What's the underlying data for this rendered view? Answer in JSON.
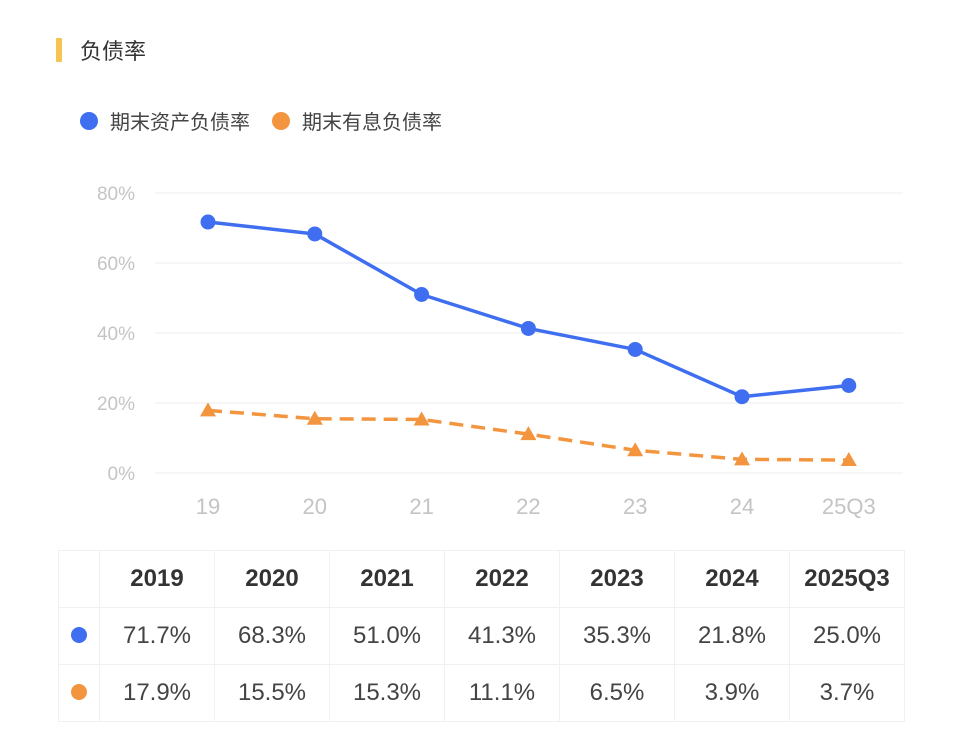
{
  "title": "负债率",
  "colors": {
    "accent_bar": "#f5c451",
    "asset_liability": "#3f6ff0",
    "interest_bearing": "#f3953f"
  },
  "chart_data": {
    "type": "line",
    "categories": [
      "19",
      "20",
      "21",
      "22",
      "23",
      "24",
      "25Q3"
    ],
    "series": [
      {
        "name": "期末资产负债率",
        "values": [
          71.7,
          68.3,
          51.0,
          41.3,
          35.3,
          21.8,
          25.0
        ],
        "marker": "circle",
        "line": "solid",
        "color": "#3f6ff0"
      },
      {
        "name": "期末有息负债率",
        "values": [
          17.9,
          15.5,
          15.3,
          11.1,
          6.5,
          3.9,
          3.7
        ],
        "marker": "triangle",
        "line": "dashed",
        "color": "#f3953f"
      }
    ],
    "ylim": [
      0,
      80
    ],
    "yticks": [
      "0%",
      "20%",
      "40%",
      "60%",
      "80%"
    ],
    "grid": true,
    "legend": "top-left"
  },
  "table": {
    "headers": [
      "2019",
      "2020",
      "2021",
      "2022",
      "2023",
      "2024",
      "2025Q3"
    ],
    "rows": [
      {
        "color": "#3f6ff0",
        "values": [
          "71.7%",
          "68.3%",
          "51.0%",
          "41.3%",
          "35.3%",
          "21.8%",
          "25.0%"
        ]
      },
      {
        "color": "#f3953f",
        "values": [
          "17.9%",
          "15.5%",
          "15.3%",
          "11.1%",
          "6.5%",
          "3.9%",
          "3.7%"
        ]
      }
    ]
  }
}
